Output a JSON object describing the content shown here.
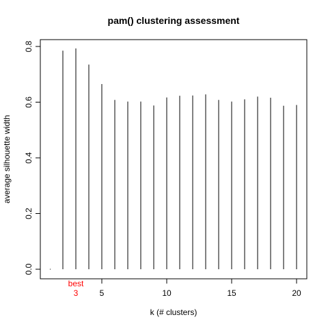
{
  "chart_data": {
    "type": "bar",
    "title": "pam() clustering assessment",
    "xlabel": "k  (# clusters)",
    "ylabel": "average silhouette width",
    "x": [
      2,
      3,
      4,
      5,
      6,
      7,
      8,
      9,
      10,
      11,
      12,
      13,
      14,
      15,
      16,
      17,
      18,
      19,
      20
    ],
    "values": [
      0.785,
      0.793,
      0.735,
      0.665,
      0.608,
      0.602,
      0.602,
      0.588,
      0.617,
      0.623,
      0.624,
      0.628,
      0.608,
      0.602,
      0.61,
      0.62,
      0.616,
      0.587,
      0.59
    ],
    "xlim": [
      1,
      20
    ],
    "ylim": [
      0,
      0.8
    ],
    "x_ticks": [
      5,
      10,
      15,
      20
    ],
    "y_ticks": [
      "0.0",
      "0.2",
      "0.4",
      "0.6",
      "0.8"
    ],
    "best": {
      "label": "best",
      "k": 3,
      "k_label": "3",
      "color": "#ff0000"
    },
    "grid": false,
    "bar_style": "vertical lines (type h)"
  }
}
